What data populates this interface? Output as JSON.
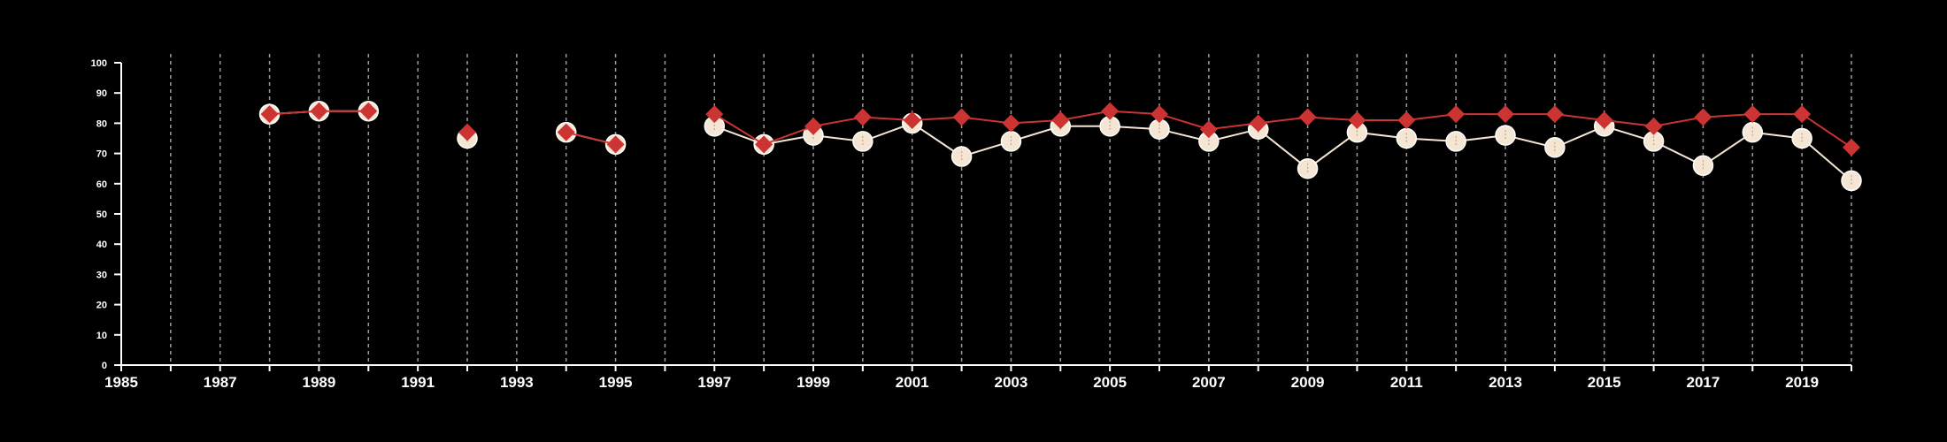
{
  "chart_data": {
    "type": "line",
    "title": "",
    "xlabel": "",
    "ylabel": "",
    "xlim": [
      1985,
      2020
    ],
    "ylim": [
      0,
      100
    ],
    "y_ticks": [
      0,
      10,
      20,
      30,
      40,
      50,
      60,
      70,
      80,
      90,
      100
    ],
    "x_tick_labels": [
      1985,
      1987,
      1989,
      1991,
      1993,
      1995,
      1997,
      1999,
      2001,
      2003,
      2005,
      2007,
      2009,
      2011,
      2013,
      2015,
      2017,
      2019
    ],
    "x_gridlines": [
      1986,
      1987,
      1988,
      1989,
      1990,
      1991,
      1992,
      1993,
      1994,
      1995,
      1996,
      1997,
      1998,
      1999,
      2000,
      2001,
      2002,
      2003,
      2004,
      2005,
      2006,
      2007,
      2008,
      2009,
      2010,
      2011,
      2012,
      2013,
      2014,
      2015,
      2016,
      2017,
      2018,
      2019,
      2020
    ],
    "grid": "vertical dashed",
    "legend": "none",
    "series": [
      {
        "marker": "circle",
        "color": "#f5e6d3",
        "x": [
          1988,
          1989,
          1990,
          1992,
          1994,
          1995,
          1997,
          1998,
          1999,
          2000,
          2001,
          2002,
          2003,
          2004,
          2005,
          2006,
          2007,
          2008,
          2009,
          2010,
          2011,
          2012,
          2013,
          2014,
          2015,
          2016,
          2017,
          2018,
          2019,
          2020
        ],
        "y": [
          83,
          84,
          84,
          75,
          77,
          73,
          79,
          73,
          76,
          74,
          80,
          69,
          74,
          79,
          79,
          78,
          74,
          78,
          65,
          77,
          75,
          74,
          76,
          72,
          79,
          74,
          66,
          77,
          75,
          61
        ]
      },
      {
        "marker": "diamond",
        "color": "#cc3333",
        "x": [
          1988,
          1989,
          1990,
          1992,
          1994,
          1995,
          1997,
          1998,
          1999,
          2000,
          2001,
          2002,
          2003,
          2004,
          2005,
          2006,
          2007,
          2008,
          2009,
          2010,
          2011,
          2012,
          2013,
          2014,
          2015,
          2016,
          2017,
          2018,
          2019,
          2020
        ],
        "y": [
          83,
          84,
          84,
          77,
          77,
          73,
          83,
          73,
          79,
          82,
          81,
          82,
          80,
          81,
          84,
          83,
          78,
          80,
          82,
          81,
          81,
          83,
          83,
          83,
          81,
          79,
          82,
          83,
          83,
          72
        ]
      }
    ]
  }
}
